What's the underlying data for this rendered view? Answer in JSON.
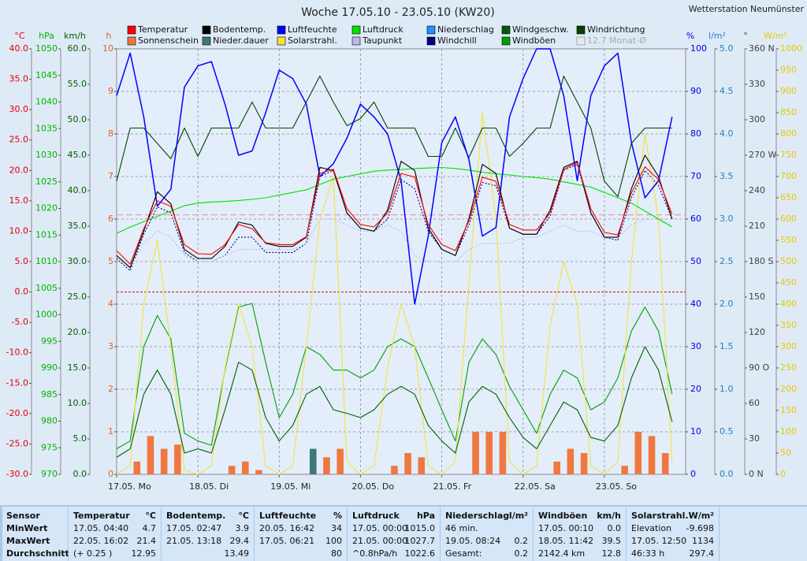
{
  "station": "Wetterstation Neumünster",
  "chart_data": {
    "type": "line",
    "title": "Woche 17.05.10 - 23.05.10 (KW20)",
    "grid": true,
    "grid_axis": "h",
    "categories": [
      "17.05. Mo",
      null,
      null,
      null,
      null,
      null,
      "18.05. Di",
      null,
      null,
      null,
      null,
      null,
      "19.05. Mi",
      null,
      null,
      null,
      null,
      null,
      "20.05. Do",
      null,
      null,
      null,
      null,
      null,
      "21.05. Fr",
      null,
      null,
      null,
      null,
      null,
      "22.05. Sa",
      null,
      null,
      null,
      null,
      null,
      "23.05. So",
      null,
      null,
      null,
      null,
      null
    ],
    "axes": [
      {
        "label": "°C",
        "color": "#e00000",
        "lim": [
          -30,
          40
        ],
        "ticks": [
          {
            "value": -30,
            "label": "-30.0"
          },
          {
            "value": -25,
            "label": "-25.0"
          },
          {
            "value": -20,
            "label": "-20.0"
          },
          {
            "value": -15,
            "label": "-15.0"
          },
          {
            "value": -10,
            "label": "-10.0"
          },
          {
            "value": -5,
            "label": "-5.0"
          },
          {
            "value": 0,
            "label": "0.0"
          },
          {
            "value": 5,
            "label": "5.0"
          },
          {
            "value": 10,
            "label": "10.0"
          },
          {
            "value": 15,
            "label": "15.0"
          },
          {
            "value": 20,
            "label": "20.0"
          },
          {
            "value": 25,
            "label": "25.0"
          },
          {
            "value": 30,
            "label": "30.0"
          },
          {
            "value": 35,
            "label": "35.0"
          },
          {
            "value": 40,
            "label": "40.0"
          }
        ]
      },
      {
        "label": "hPa",
        "color": "#00b400",
        "lim": [
          970,
          1050
        ],
        "ticks": [
          970,
          975,
          980,
          985,
          990,
          995,
          1000,
          1005,
          1010,
          1015,
          1020,
          1025,
          1030,
          1035,
          1040,
          1045,
          1050
        ]
      },
      {
        "label": "km/h",
        "color": "#006000",
        "lim": [
          0,
          60
        ],
        "ticks": [
          {
            "value": 0,
            "label": "0.0"
          },
          {
            "value": 5,
            "label": "5.0"
          },
          {
            "value": 10,
            "label": "10.0"
          },
          {
            "value": 15,
            "label": "15.0"
          },
          {
            "value": 20,
            "label": "20.0"
          },
          {
            "value": 25,
            "label": "25.0"
          },
          {
            "value": 30,
            "label": "30.0"
          },
          {
            "value": 35,
            "label": "35.0"
          },
          {
            "value": 40,
            "label": "40.0"
          },
          {
            "value": 45,
            "label": "45.0"
          },
          {
            "value": 50,
            "label": "50.0"
          },
          {
            "value": 55,
            "label": "55.0"
          },
          {
            "value": 60,
            "label": "60.0"
          }
        ]
      },
      {
        "label": "h",
        "color": "#e06020",
        "lim": [
          0,
          10
        ],
        "ticks": [
          0,
          1,
          2,
          3,
          4,
          5,
          6,
          7,
          8,
          9,
          10
        ]
      },
      {
        "label": "%",
        "color": "#0000e0",
        "lim": [
          0,
          100
        ],
        "ticks": [
          0,
          10,
          20,
          30,
          40,
          50,
          60,
          70,
          80,
          90,
          100
        ]
      },
      {
        "label": "l/m²",
        "color": "#1e80c0",
        "lim": [
          0,
          5
        ],
        "ticks": [
          {
            "value": 0,
            "label": "0.0"
          },
          0.5,
          {
            "value": 1,
            "label": "1.0"
          },
          1.5,
          {
            "value": 2,
            "label": "2.0"
          },
          2.5,
          {
            "value": 3,
            "label": "3.0"
          },
          3.5,
          {
            "value": 4,
            "label": "4.0"
          },
          4.5,
          {
            "value": 5,
            "label": "5.0"
          }
        ]
      },
      {
        "label": "°",
        "color": "#404040",
        "lim": [
          0,
          360
        ],
        "ticks": [
          {
            "value": 0,
            "label": "0   N"
          },
          30,
          60,
          {
            "value": 90,
            "label": "90   O"
          },
          120,
          150,
          {
            "value": 180,
            "label": "180 S"
          },
          210,
          240,
          {
            "value": 270,
            "label": "270 W"
          },
          300,
          330,
          {
            "value": 360,
            "label": "360 N"
          }
        ]
      },
      {
        "label": "W/m²",
        "color": "#e8c800",
        "lim": [
          0,
          1000
        ],
        "ticks": [
          0,
          50,
          100,
          150,
          200,
          250,
          300,
          350,
          400,
          450,
          500,
          550,
          600,
          650,
          700,
          750,
          800,
          850,
          900,
          950,
          1000
        ]
      }
    ],
    "series": [
      {
        "name": "Temperatur",
        "color": "#ff0000",
        "type": "line",
        "axis": "°C",
        "values": [
          6.8,
          4.6,
          10.4,
          15.0,
          14.1,
          7.8,
          6.3,
          6.2,
          7.8,
          11.1,
          10.4,
          8.1,
          7.8,
          7.8,
          9.1,
          19.5,
          20.2,
          13.7,
          11.1,
          10.7,
          13.0,
          19.5,
          18.9,
          11.1,
          7.8,
          6.8,
          11.7,
          18.9,
          18.2,
          11.1,
          10.2,
          10.2,
          13.0,
          20.2,
          21.3,
          13.7,
          9.8,
          9.4,
          16.3,
          20.6,
          18.5,
          12.8
        ]
      },
      {
        "name": "Bodentemp.",
        "color": "#000000",
        "type": "line",
        "axis": "°C",
        "values": [
          6.0,
          4.0,
          10.0,
          16.5,
          14.5,
          7.0,
          5.5,
          5.5,
          7.5,
          11.5,
          11.0,
          8.0,
          7.5,
          7.5,
          9.0,
          20.5,
          20.0,
          13.0,
          10.5,
          10.0,
          13.5,
          21.5,
          20.0,
          10.5,
          7.0,
          6.0,
          12.0,
          21.0,
          19.5,
          10.5,
          9.5,
          9.5,
          13.5,
          20.5,
          21.5,
          13.0,
          9.0,
          9.0,
          17.0,
          22.5,
          19.0,
          12.0
        ]
      },
      {
        "name": "Luftfeuchte",
        "color": "#0000ff",
        "type": "line",
        "axis": "%",
        "values": [
          89,
          99,
          84,
          63,
          67,
          91,
          96,
          97,
          87,
          75,
          76,
          85,
          95,
          93,
          87,
          70,
          73,
          79,
          87,
          84,
          80,
          69,
          40,
          56,
          78,
          84,
          74,
          56,
          58,
          84,
          93,
          100,
          100,
          89,
          69,
          89,
          96,
          99,
          78,
          65,
          69,
          84
        ]
      },
      {
        "name": "Luftdruck",
        "color": "#00e000",
        "type": "line",
        "axis": "hPa",
        "values": [
          1015.3,
          1016.5,
          1017.5,
          1018.5,
          1019.5,
          1020.5,
          1021.0,
          1021.2,
          1021.3,
          1021.5,
          1021.7,
          1022.0,
          1022.5,
          1023.0,
          1023.5,
          1024.5,
          1025.5,
          1026.0,
          1026.5,
          1027.0,
          1027.2,
          1027.3,
          1027.5,
          1027.6,
          1027.7,
          1027.5,
          1027.2,
          1026.8,
          1026.5,
          1026.3,
          1026.0,
          1025.8,
          1025.5,
          1025.0,
          1024.5,
          1024.0,
          1023.0,
          1022.0,
          1021.0,
          1019.5,
          1018.0,
          1016.5
        ]
      },
      {
        "name": "Niederschlag",
        "color": "#1e90ff",
        "type": "bar",
        "axis": "l/m²",
        "values": [
          0,
          0,
          0,
          0,
          0,
          0,
          0,
          0,
          0,
          0,
          0,
          0,
          0,
          0,
          0.2,
          0,
          0,
          0,
          0,
          0,
          0,
          0,
          0,
          0,
          0,
          0,
          0,
          0,
          0,
          0,
          0,
          0,
          0,
          0,
          0,
          0,
          0,
          0,
          0,
          0,
          0,
          0
        ]
      },
      {
        "name": "Windgeschw.",
        "color": "#006000",
        "type": "line",
        "axis": "km/h",
        "values": [
          2.4,
          3.6,
          11.3,
          14.7,
          11.3,
          3.0,
          3.6,
          3.0,
          9.1,
          15.8,
          14.7,
          8.0,
          4.7,
          6.9,
          11.3,
          12.4,
          9.1,
          8.6,
          8.0,
          9.1,
          11.3,
          12.4,
          11.3,
          6.9,
          4.7,
          3.0,
          10.2,
          12.4,
          11.3,
          8.0,
          5.2,
          3.6,
          6.9,
          10.2,
          9.1,
          5.2,
          4.7,
          6.9,
          13.6,
          18.0,
          14.7,
          7.4
        ]
      },
      {
        "name": "Windrichtung",
        "color": "#004400",
        "type": "line",
        "axis": "°",
        "values": [
          248,
          293,
          293,
          280,
          267,
          293,
          269,
          293,
          293,
          293,
          315,
          293,
          293,
          293,
          315,
          337,
          315,
          295,
          301,
          315,
          293,
          293,
          293,
          269,
          269,
          293,
          268,
          293,
          293,
          269,
          280,
          293,
          293,
          337,
          315,
          293,
          248,
          235,
          280,
          293,
          293,
          293
        ]
      },
      {
        "name": "Sonnenschein",
        "color": "#f07840",
        "type": "bar",
        "axis": "h",
        "values": [
          0,
          0.3,
          0.9,
          0.6,
          0.7,
          0,
          0,
          0,
          0.2,
          0.3,
          0.1,
          0,
          0,
          0,
          0.1,
          0.4,
          0.6,
          0,
          0,
          0,
          0.2,
          0.5,
          0.4,
          0,
          0,
          0,
          1.0,
          1.0,
          1.0,
          0,
          0,
          0,
          0.3,
          0.6,
          0.5,
          0,
          0,
          0.2,
          1.0,
          0.9,
          0.5,
          0
        ]
      },
      {
        "name": "Nieder.dauer",
        "color": "#407878",
        "type": "bar",
        "axis": "h",
        "values": [
          0,
          0,
          0,
          0,
          0,
          0,
          0,
          0,
          0,
          0,
          0,
          0,
          0,
          0,
          0.6,
          0,
          0,
          0,
          0,
          0,
          0,
          0,
          0,
          0,
          0,
          0,
          0,
          0,
          0,
          0,
          0,
          0,
          0,
          0,
          0,
          0,
          0,
          0,
          0,
          0,
          0,
          0
        ]
      },
      {
        "name": "Solarstrahl.",
        "color": "#f4e23c",
        "type": "line",
        "axis": "W/m²",
        "values": [
          0,
          20,
          400,
          550,
          300,
          10,
          0,
          20,
          250,
          400,
          300,
          20,
          0,
          20,
          300,
          600,
          700,
          30,
          0,
          20,
          250,
          400,
          300,
          20,
          0,
          30,
          450,
          850,
          600,
          30,
          0,
          20,
          350,
          500,
          400,
          20,
          0,
          30,
          500,
          800,
          600,
          30
        ]
      },
      {
        "name": "Taupunkt",
        "color": "#b8b8ec",
        "type": "line",
        "style": "dotted",
        "axis": "°C",
        "values": [
          5,
          4,
          8,
          10,
          9,
          6,
          5,
          5,
          6,
          7,
          7,
          7,
          7,
          7,
          8,
          12,
          12,
          11,
          10,
          10,
          11,
          10,
          6,
          5,
          5,
          5,
          7,
          8,
          8,
          8,
          9,
          9,
          10,
          11,
          10,
          10,
          9,
          9,
          11,
          12,
          12,
          11
        ]
      },
      {
        "name": "Windchill",
        "color": "#000080",
        "type": "line",
        "style": "dotted",
        "axis": "°C",
        "values": [
          5.5,
          3.5,
          9.5,
          14,
          13,
          6.5,
          5,
          5,
          6,
          9,
          9,
          6.5,
          6.5,
          6.5,
          8,
          19,
          20,
          13,
          10.5,
          10,
          12,
          18.5,
          17,
          10,
          7,
          6,
          11,
          18,
          17.5,
          10.5,
          9.5,
          9.5,
          12.5,
          20,
          21,
          13,
          9,
          8.5,
          15.5,
          20,
          17.5,
          12
        ]
      },
      {
        "name": "Windböen",
        "color": "#00a000",
        "type": "line",
        "axis": "km/h",
        "values": [
          3.6,
          4.7,
          18,
          22.4,
          19.1,
          5.8,
          4.7,
          4.1,
          14.7,
          23.6,
          24.1,
          15.8,
          8,
          11.3,
          18,
          16.9,
          14.7,
          14.7,
          13.6,
          14.7,
          18,
          19.1,
          18,
          13.6,
          9.1,
          4.7,
          15.8,
          19.1,
          16.9,
          12.4,
          9.1,
          5.8,
          11.3,
          14.7,
          13.6,
          9.1,
          10.2,
          13.6,
          20.2,
          23.6,
          20.2,
          11.3
        ]
      }
    ],
    "reference_lines": [
      {
        "label": "12.7 Monat-Ø",
        "value": 12.7,
        "axis": "°C",
        "color": "#e8a0b0"
      }
    ]
  },
  "table": {
    "row_labels": [
      "Sensor",
      "MinWert",
      "MaxWert",
      "Durchschnitt"
    ],
    "columns": [
      {
        "name": "Temperatur",
        "unit": "°C",
        "cells": [
          [
            "17.05.  04:40",
            "4.7"
          ],
          [
            "22.05.  16:02",
            "21.4"
          ],
          [
            "(+ 0.25 )",
            "12.95"
          ]
        ]
      },
      {
        "name": "Bodentemp.",
        "unit": "°C",
        "cells": [
          [
            "17.05.  02:47",
            "3.9"
          ],
          [
            "21.05.  13:18",
            "29.4"
          ],
          [
            null,
            "13.49"
          ]
        ]
      },
      {
        "name": "Luftfeuchte",
        "unit": "%",
        "cells": [
          [
            "20.05.  16:42",
            "34"
          ],
          [
            "17.05.  06:21",
            "100"
          ],
          [
            null,
            "80"
          ]
        ]
      },
      {
        "name": "Luftdruck",
        "unit": "hPa",
        "cells": [
          [
            "17.05.  00:00",
            "1015.0"
          ],
          [
            "21.05.  00:00",
            "1027.7"
          ],
          [
            "^0.8hPa/h",
            "1022.6"
          ]
        ]
      },
      {
        "name": "Niederschlag",
        "unit": "l/m²",
        "cells": [
          [
            "46 min.",
            null
          ],
          [
            "19.05.  08:24",
            "0.2"
          ],
          [
            "Gesamt:",
            "0.2"
          ]
        ]
      },
      {
        "name": "Windböen",
        "unit": "km/h",
        "cells": [
          [
            "17.05.  00:10",
            "0.0"
          ],
          [
            "18.05.  11:42",
            "39.5"
          ],
          [
            "2142.4 km",
            "12.8"
          ]
        ]
      },
      {
        "name": "Solarstrahl.",
        "unit": "W/m²",
        "cells": [
          [
            "Elevation",
            "-9.698"
          ],
          [
            "17.05.  12:50",
            "1134"
          ],
          [
            "46:33 h",
            "297.4"
          ]
        ]
      }
    ]
  }
}
